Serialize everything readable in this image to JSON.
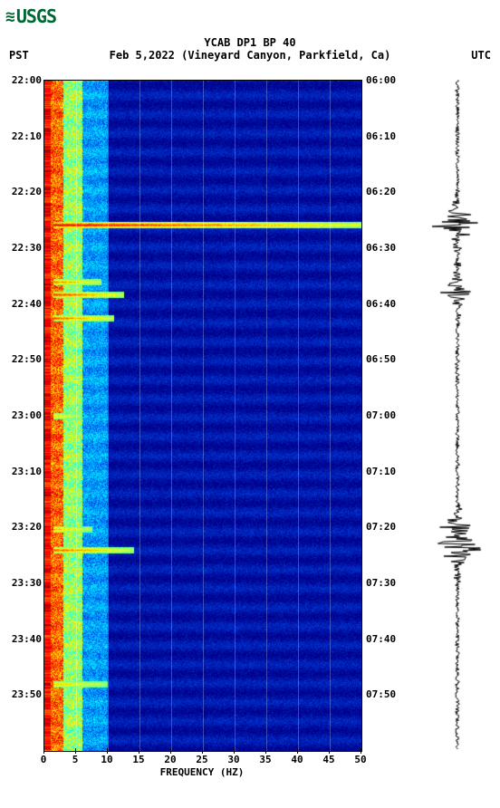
{
  "logo_text": "USGS",
  "title": "YCAB DP1 BP 40",
  "subtitle_left": "PST",
  "subtitle_center": "Feb 5,2022 (Vineyard Canyon, Parkfield, Ca)",
  "subtitle_right": "UTC",
  "xlabel": "FREQUENCY (HZ)",
  "chart": {
    "type": "spectrogram_with_waveform",
    "x_axis": {
      "min": 0,
      "max": 50,
      "ticks": [
        0,
        5,
        10,
        15,
        20,
        25,
        30,
        35,
        40,
        45,
        50
      ]
    },
    "y_axis_left": {
      "ticks": [
        "22:00",
        "22:10",
        "22:20",
        "22:30",
        "22:40",
        "22:50",
        "23:00",
        "23:10",
        "23:20",
        "23:30",
        "23:40",
        "23:50"
      ]
    },
    "y_axis_right": {
      "ticks": [
        "06:00",
        "06:10",
        "06:20",
        "06:30",
        "06:40",
        "06:50",
        "07:00",
        "07:10",
        "07:20",
        "07:30",
        "07:40",
        "07:50"
      ]
    },
    "background_color": "#00008b",
    "colormap": [
      "#8b0000",
      "#ff0000",
      "#ff8000",
      "#ffff00",
      "#80ff80",
      "#00ffff",
      "#00a0ff",
      "#0040e0",
      "#00008b"
    ],
    "events": [
      {
        "time_frac": 0.216,
        "freq_extent": 1.0,
        "intensity": 0.95
      },
      {
        "time_frac": 0.32,
        "freq_extent": 0.25,
        "intensity": 0.85
      },
      {
        "time_frac": 0.3,
        "freq_extent": 0.18,
        "intensity": 0.7
      },
      {
        "time_frac": 0.355,
        "freq_extent": 0.22,
        "intensity": 0.8
      },
      {
        "time_frac": 0.67,
        "freq_extent": 0.15,
        "intensity": 0.6
      },
      {
        "time_frac": 0.7,
        "freq_extent": 0.28,
        "intensity": 0.75
      },
      {
        "time_frac": 0.5,
        "freq_extent": 0.12,
        "intensity": 0.5
      },
      {
        "time_frac": 0.9,
        "freq_extent": 0.2,
        "intensity": 0.55
      }
    ],
    "waveform_events": [
      {
        "time_frac": 0.216,
        "amplitude": 1.0
      },
      {
        "time_frac": 0.315,
        "amplitude": 0.6
      },
      {
        "time_frac": 0.67,
        "amplitude": 0.5
      },
      {
        "time_frac": 0.7,
        "amplitude": 0.9
      }
    ]
  }
}
